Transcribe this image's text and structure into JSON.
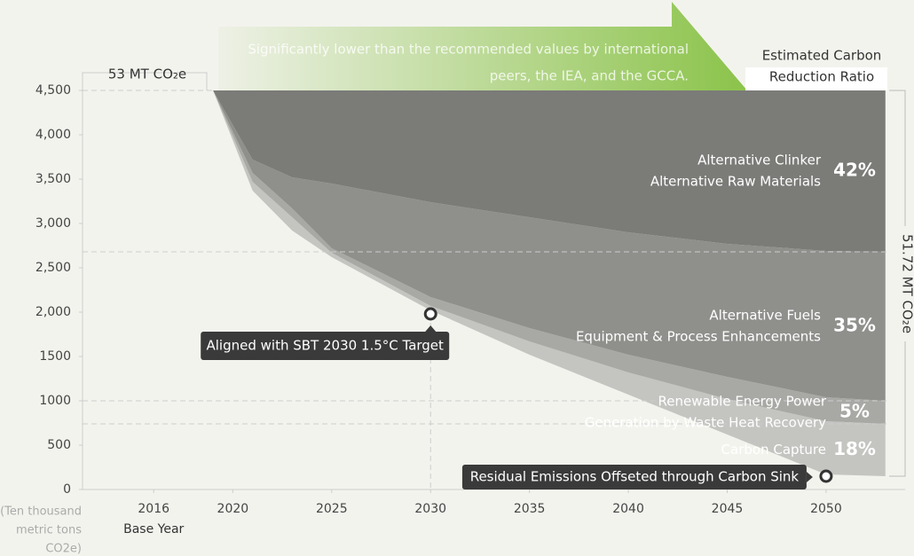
{
  "chart_data": {
    "type": "stacked_area",
    "banner": [
      "Significantly lower than the recommended values by international",
      "peers, the IEA, and the GCCA."
    ],
    "header": [
      "Estimated Carbon",
      "Reduction Ratio"
    ],
    "start_label": "53 MT CO₂e",
    "total_label": "51.72 MT CO₂e",
    "unit_label": [
      "(Ten thousand",
      "metric tons",
      "CO2e)"
    ],
    "base_year_label": "Base Year",
    "x": [
      2019,
      2021,
      2023,
      2025,
      2030,
      2035,
      2040,
      2045,
      2050,
      2053
    ],
    "series": [
      {
        "name": "Residual Emissions Offseted through Carbon Sink",
        "color": "none",
        "values": [
          4500,
          3370,
          2920,
          2620,
          2020,
          1520,
          1070,
          620,
          170,
          150
        ]
      },
      {
        "name": "Carbon Capture",
        "labels": [
          "Carbon Capture"
        ],
        "ratio": "18%",
        "color": "#c4c4c1",
        "values": [
          0,
          100,
          150,
          50,
          50,
          150,
          250,
          400,
          600,
          590
        ]
      },
      {
        "name": "Renewable Energy Power",
        "labels": [
          "Renewable Energy Power",
          "Generation by Waste Heat Recovery"
        ],
        "ratio": "5%",
        "color": "#a8a8a5",
        "values": [
          0,
          100,
          100,
          50,
          100,
          150,
          200,
          250,
          270,
          260
        ]
      },
      {
        "name": "Alternative Fuels",
        "labels": [
          "Alternative Fuels",
          "Equipment & Process Enhancements"
        ],
        "ratio": "35%",
        "color": "#8f8f8c",
        "values": [
          0,
          150,
          350,
          730,
          1070,
          1250,
          1380,
          1500,
          1650,
          1680
        ]
      },
      {
        "name": "Alternative Clinker",
        "labels": [
          "Alternative Clinker",
          "Alternative Raw Materials"
        ],
        "ratio": "42%",
        "color": "#7b7b78",
        "values": [
          0,
          780,
          980,
          1050,
          1260,
          1430,
          1600,
          1730,
          1810,
          1820
        ]
      }
    ],
    "annotations": [
      {
        "text": "Aligned with SBT 2030 1.5°C Target",
        "x": 2030,
        "y": 1980
      },
      {
        "text": "Residual Emissions Offseted through Carbon Sink",
        "x": 2050,
        "y": 150
      }
    ],
    "xlim": [
      2012.4,
      2053.1
    ],
    "xticks": [
      2016,
      2020,
      2025,
      2030,
      2035,
      2040,
      2045,
      2050
    ],
    "ylim": [
      0,
      4500
    ],
    "yticks": [
      0,
      500,
      1000,
      1500,
      {
        "value": 2000,
        "label": "2,000"
      },
      {
        "value": 2500,
        "label": "2,500"
      },
      {
        "value": 3000,
        "label": "3,000"
      },
      {
        "value": 3500,
        "label": "3,500"
      },
      {
        "value": 4000,
        "label": "4,000"
      },
      {
        "value": 4500,
        "label": "4,500"
      }
    ]
  }
}
